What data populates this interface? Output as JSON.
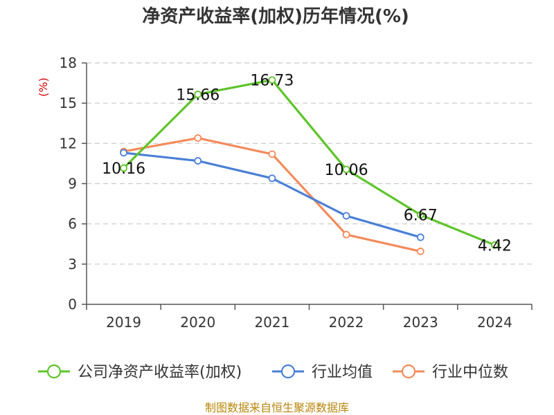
{
  "chart_data": {
    "type": "line",
    "title": "净资产收益率(加权)历年情况(%)",
    "ylabel": "(%)",
    "xlabel": "",
    "categories": [
      "2019",
      "2020",
      "2021",
      "2022",
      "2023",
      "2024"
    ],
    "ylim": [
      0,
      18
    ],
    "yticks": [
      0,
      3,
      6,
      9,
      12,
      15,
      18
    ],
    "grid": true,
    "legend_position": "bottom",
    "series": [
      {
        "name": "公司净资产收益率(加权)",
        "color": "#5ec42a",
        "values": [
          10.16,
          15.66,
          16.73,
          10.06,
          6.67,
          4.42
        ],
        "labels": [
          "10.16",
          "15.66",
          "16.73",
          "10.06",
          "6.67",
          "4.42"
        ]
      },
      {
        "name": "行业均值",
        "color": "#4a7fd6",
        "values": [
          11.3,
          10.7,
          9.4,
          6.6,
          5.0,
          null
        ]
      },
      {
        "name": "行业中位数",
        "color": "#f48a5a",
        "values": [
          11.4,
          12.4,
          11.2,
          5.2,
          3.95,
          null
        ]
      }
    ],
    "source": "制图数据来自恒生聚源数据库"
  }
}
